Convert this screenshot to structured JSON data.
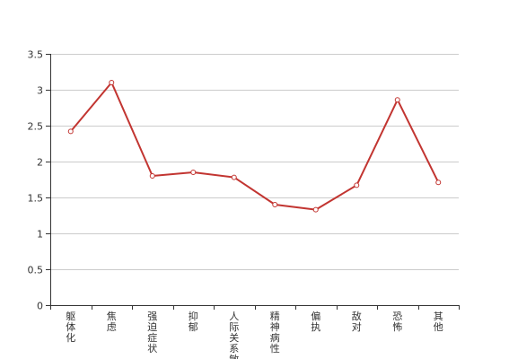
{
  "chart_data": {
    "type": "line",
    "categories": [
      "躯体化",
      "焦虑",
      "强迫症状",
      "抑郁",
      "人际关系敏感",
      "精神病性",
      "偏执",
      "敌对",
      "恐怖",
      "其他"
    ],
    "series": [
      {
        "values": [
          2.42,
          3.1,
          1.8,
          1.85,
          1.78,
          1.4,
          1.33,
          1.67,
          2.86,
          1.71
        ]
      }
    ],
    "yticks": [
      "0",
      "0.5",
      "1",
      "1.5",
      "2",
      "2.5",
      "3",
      "3.5"
    ],
    "ylim": [
      0,
      3.5
    ],
    "grid": true,
    "line_color": "#c23531"
  }
}
